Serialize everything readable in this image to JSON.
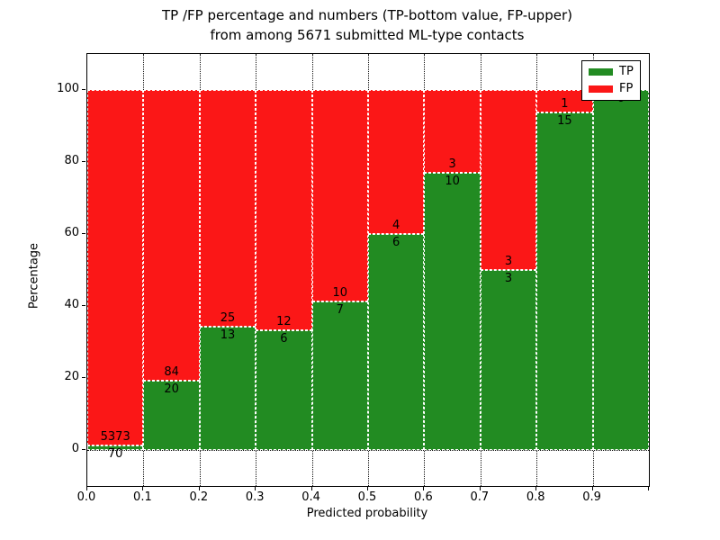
{
  "title": {
    "line1": "TP /FP percentage and numbers (TP-bottom value, FP-upper)",
    "line2": "from among 5671 submitted ML-type contacts"
  },
  "axes": {
    "xlabel": "Predicted probability",
    "ylabel": "Percentage",
    "x_tick_labels": [
      "0.0",
      "0.1",
      "0.2",
      "0.3",
      "0.4",
      "0.5",
      "0.6",
      "0.7",
      "0.8",
      "0.9"
    ],
    "x_tick_values": [
      0.0,
      0.1,
      0.2,
      0.3,
      0.4,
      0.5,
      0.6,
      0.7,
      0.8,
      0.9
    ],
    "y_tick_labels": [
      "0",
      "20",
      "40",
      "60",
      "80",
      "100"
    ],
    "y_tick_values": [
      0,
      20,
      40,
      60,
      80,
      100
    ],
    "xlim": [
      0.0,
      1.0
    ],
    "ylim": [
      -10,
      110
    ],
    "grid": "dotted"
  },
  "legend": {
    "entries": [
      {
        "label": "TP",
        "color": "#228b22",
        "swatch": "green-swatch"
      },
      {
        "label": "FP",
        "color": "#fb1717",
        "swatch": "red-swatch"
      }
    ],
    "position": "upper right"
  },
  "colors": {
    "tp_green": "#228b22",
    "fp_red": "#fb1717",
    "bar_edge": "#ffffff",
    "grid": "#111111"
  },
  "chart_data": {
    "type": "bar",
    "stacked": true,
    "normalized": "each bar totals 100%",
    "total_contacts": 5671,
    "bin_width": 0.1,
    "bin_starts": [
      0.0,
      0.1,
      0.2,
      0.3,
      0.4,
      0.5,
      0.6,
      0.7,
      0.8,
      0.9
    ],
    "categories": [
      "0.0-0.1",
      "0.1-0.2",
      "0.2-0.3",
      "0.3-0.4",
      "0.4-0.5",
      "0.5-0.6",
      "0.6-0.7",
      "0.7-0.8",
      "0.8-0.9",
      "0.9-1.0"
    ],
    "series": [
      {
        "name": "TP",
        "color": "#228b22",
        "counts": [
          70,
          20,
          13,
          6,
          7,
          6,
          10,
          3,
          15,
          6
        ],
        "percent": [
          1.3,
          19.2,
          34.2,
          33.3,
          41.2,
          60.0,
          76.9,
          50.0,
          93.8,
          100.0
        ]
      },
      {
        "name": "FP",
        "color": "#fb1717",
        "counts": [
          5373,
          84,
          25,
          12,
          10,
          4,
          3,
          3,
          1,
          0
        ],
        "percent": [
          98.7,
          80.8,
          65.8,
          66.7,
          58.8,
          40.0,
          23.1,
          50.0,
          6.2,
          0.0
        ]
      }
    ],
    "title": "TP /FP percentage and numbers (TP-bottom value, FP-upper) from among 5671 submitted ML-type contacts",
    "xlabel": "Predicted probability",
    "ylabel": "Percentage"
  }
}
